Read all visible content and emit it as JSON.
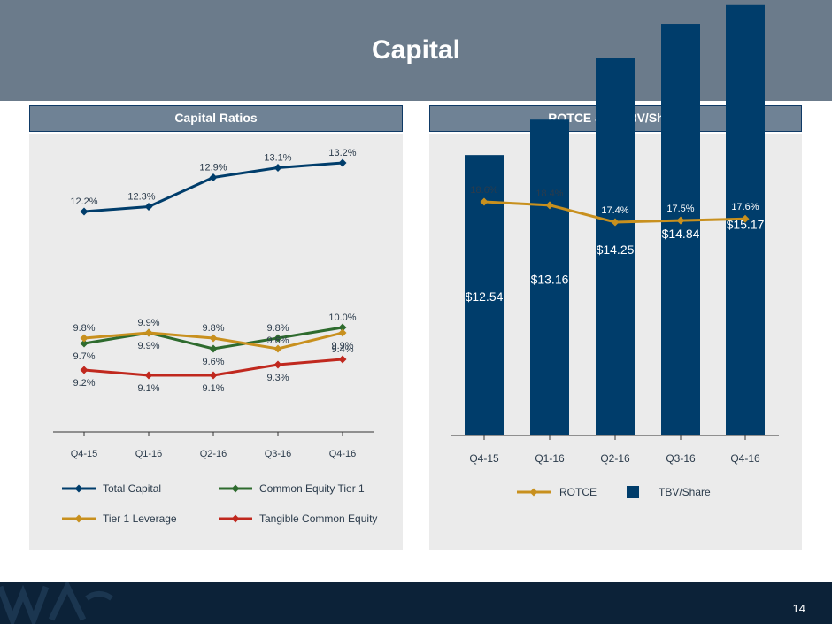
{
  "page": {
    "title": "Capital",
    "page_number": "14"
  },
  "colors": {
    "header_bg": "#6b7b8b",
    "navy": "#003d6b",
    "green": "#2e6b2e",
    "gold": "#c8901e",
    "red": "#c0281e"
  },
  "chart_data": [
    {
      "type": "line",
      "title": "Capital Ratios",
      "categories": [
        "Q4-15",
        "Q1-16",
        "Q2-16",
        "Q3-16",
        "Q4-16"
      ],
      "series": [
        {
          "name": "Total Capital",
          "color": "#003d6b",
          "values": [
            12.2,
            12.3,
            12.9,
            13.1,
            13.2
          ],
          "labels": [
            "12.2%",
            "12.3%",
            "12.9%",
            "13.1%",
            "13.2%"
          ]
        },
        {
          "name": "Common Equity Tier 1",
          "color": "#2e6b2e",
          "values": [
            9.7,
            9.9,
            9.6,
            9.8,
            10.0
          ],
          "labels": [
            "9.7%",
            "9.9%",
            "9.6%",
            "9.8%",
            "10.0%"
          ]
        },
        {
          "name": "Tier 1 Leverage",
          "color": "#c8901e",
          "values": [
            9.8,
            9.9,
            9.8,
            9.6,
            9.9
          ],
          "labels": [
            "9.8%",
            "9.9%",
            "9.8%",
            "9.6%",
            "9.9%"
          ]
        },
        {
          "name": "Tangible Common Equity",
          "color": "#c0281e",
          "values": [
            9.2,
            9.1,
            9.1,
            9.3,
            9.4
          ],
          "labels": [
            "9.2%",
            "9.1%",
            "9.1%",
            "9.3%",
            "9.4%"
          ]
        }
      ],
      "legend": [
        "Total Capital",
        "Common Equity Tier 1",
        "Tier 1 Leverage",
        "Tangible Common Equity"
      ]
    },
    {
      "type": "bar",
      "title": "ROTCE and TBV/Share",
      "categories": [
        "Q4-15",
        "Q1-16",
        "Q2-16",
        "Q3-16",
        "Q4-16"
      ],
      "series": [
        {
          "name": "TBV/Share",
          "color": "#003d6b",
          "values": [
            12.54,
            13.16,
            14.25,
            14.84,
            15.17
          ],
          "labels": [
            "$12.54",
            "$13.16",
            "$14.25",
            "$14.84",
            "$15.17"
          ]
        },
        {
          "name": "ROTCE",
          "type": "line",
          "color": "#c8901e",
          "values": [
            18.6,
            18.4,
            17.4,
            17.5,
            17.6
          ],
          "labels": [
            "18.6%",
            "18.4%",
            "17.4%",
            "17.5%",
            "17.6%"
          ]
        }
      ],
      "legend": [
        "ROTCE",
        "TBV/Share"
      ]
    }
  ]
}
